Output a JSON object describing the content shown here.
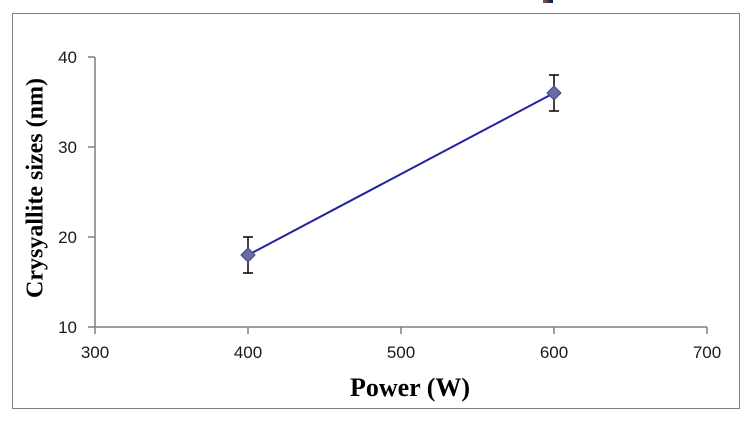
{
  "figure": {
    "background": "#ffffff",
    "border_color": "#7f7f7f"
  },
  "chart_data": {
    "type": "line",
    "xlabel": "Power (W)",
    "ylabel": "Crysyallite sizes (nm)",
    "x": [
      400,
      600
    ],
    "y": [
      18,
      36
    ],
    "yerr": [
      2,
      2
    ],
    "xlim": [
      300,
      700
    ],
    "ylim": [
      10,
      40
    ],
    "xticks": [
      300,
      400,
      500,
      600,
      700
    ],
    "yticks": [
      10,
      20,
      30,
      40
    ],
    "grid": false,
    "legend": "none",
    "marker": "diamond",
    "colors": {
      "line": "#2323A0",
      "marker": "#6A6AA5",
      "marker_edge": "#47478F",
      "error": "#000000",
      "axis": "#7f7f7f",
      "tick_text": "#1a1a1a",
      "label_text": "#000000"
    }
  }
}
